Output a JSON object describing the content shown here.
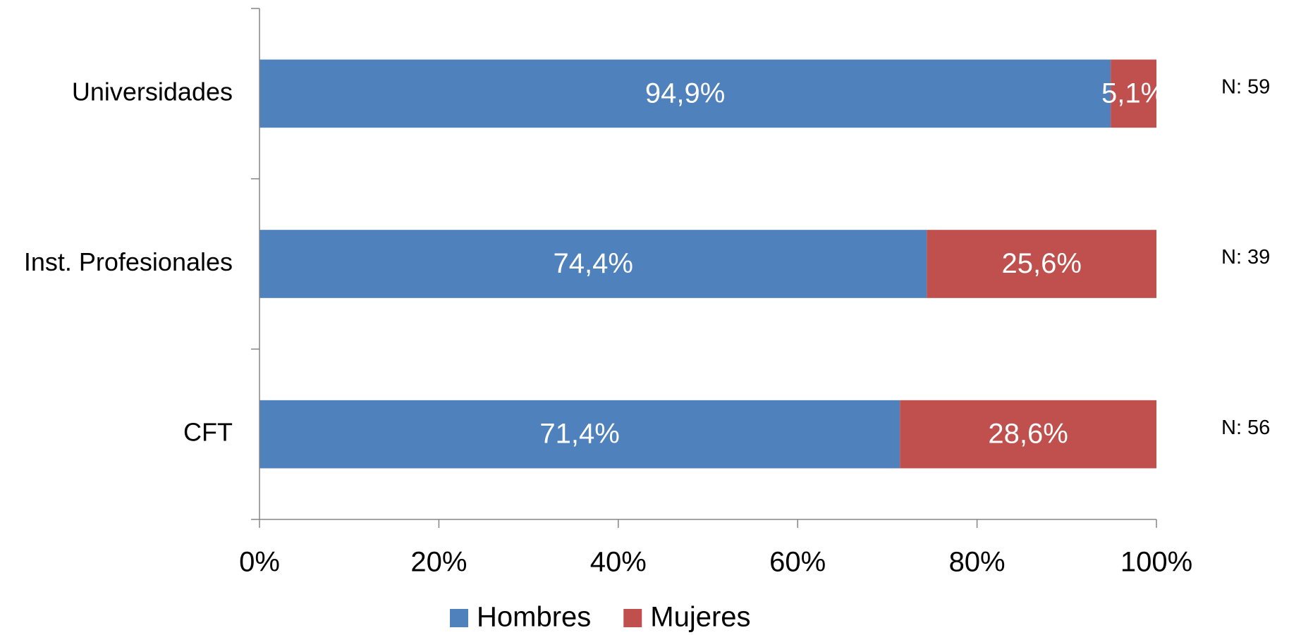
{
  "chart_data": {
    "type": "stacked_barh",
    "categories": [
      "Universidades",
      "Inst. Profesionales",
      "CFT"
    ],
    "series": [
      {
        "name": "Hombres",
        "color": "#4f81bd",
        "values": [
          94.9,
          74.4,
          71.4
        ],
        "value_labels": [
          "94,9%",
          "74,4%",
          "71,4%"
        ]
      },
      {
        "name": "Mujeres",
        "color": "#c0504d",
        "values": [
          5.1,
          25.6,
          28.6
        ],
        "value_labels": [
          "5,1%",
          "25,6%",
          "28,6%"
        ]
      }
    ],
    "annotations": [
      "N: 59",
      "N: 39",
      "N: 56"
    ],
    "xlim": [
      0,
      100
    ],
    "xticks": [
      {
        "value": 0,
        "label": "0%"
      },
      {
        "value": 20,
        "label": "20%"
      },
      {
        "value": 40,
        "label": "40%"
      },
      {
        "value": 60,
        "label": "60%"
      },
      {
        "value": 80,
        "label": "80%"
      },
      {
        "value": 100,
        "label": "100%"
      }
    ],
    "legend": "bottom"
  }
}
